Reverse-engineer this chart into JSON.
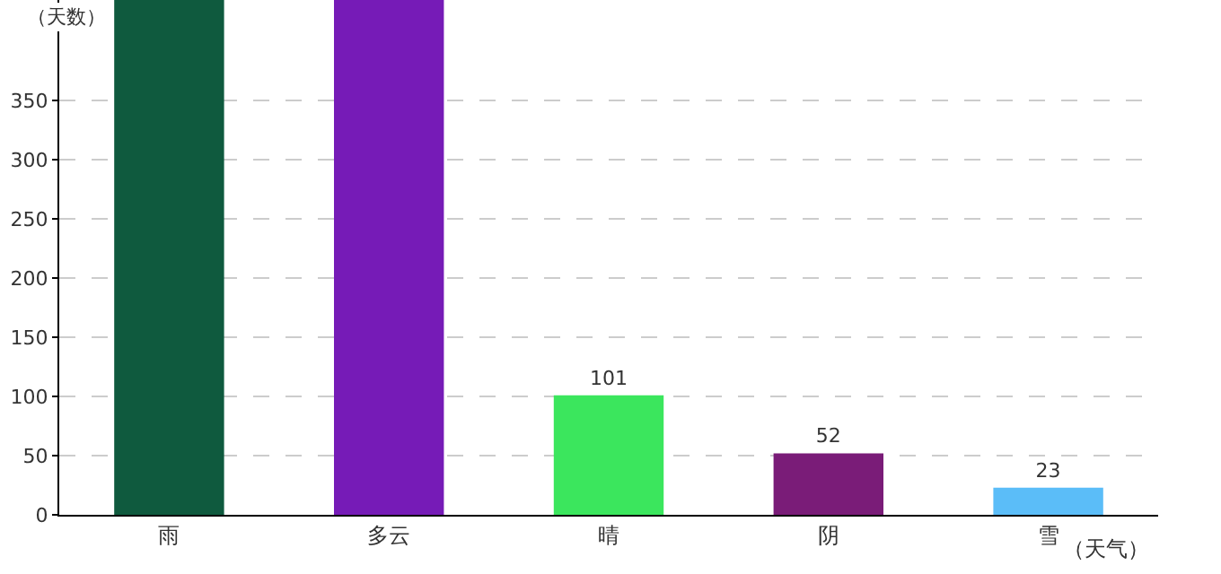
{
  "chart_data": {
    "type": "bar",
    "xlabel": "（天气）",
    "ylabel": "（天数）",
    "categories": [
      "雨",
      "多云",
      "晴",
      "阴",
      "雪"
    ],
    "values": [
      435,
      435,
      101,
      52,
      23
    ],
    "colors": [
      "#0f5a3e",
      "#761bb7",
      "#3be65d",
      "#7a1c78",
      "#5bbdf8"
    ],
    "value_labels": [
      null,
      null,
      "101",
      "52",
      "23"
    ],
    "ylim": [
      0,
      435
    ],
    "yticks": [
      0,
      50,
      100,
      150,
      200,
      250,
      300,
      350
    ],
    "grid": "y"
  }
}
